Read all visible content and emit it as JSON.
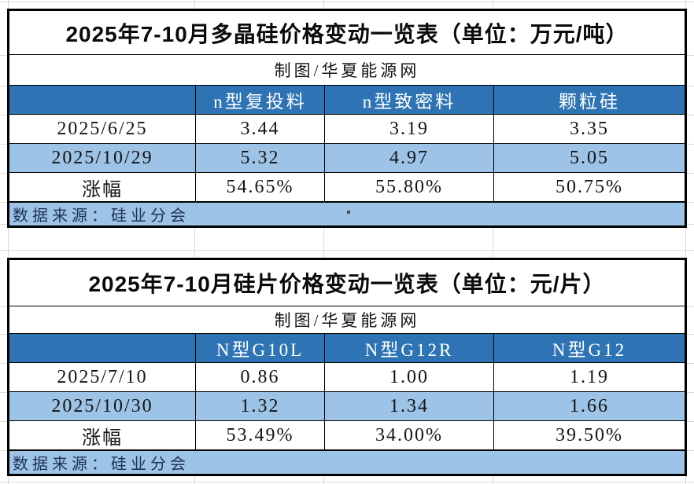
{
  "colors": {
    "header_bg": "#2E74B5",
    "band_bg": "#9DC3E6",
    "border": "#000000",
    "source_text": "#1F3350",
    "gridline": "#D9D9D9"
  },
  "chart_data": [
    {
      "type": "table",
      "title": "2025年7-10月多晶硅价格变动一览表（单位：万元/吨）",
      "credit": "制图/华夏能源网",
      "columns": [
        "n型复投料",
        "n型致密料",
        "颗粒硅"
      ],
      "row_labels": [
        "2025/6/25",
        "2025/10/29",
        "涨幅"
      ],
      "rows": [
        [
          "3.44",
          "3.19",
          "3.35"
        ],
        [
          "5.32",
          "4.97",
          "5.05"
        ],
        [
          "54.65%",
          "55.80%",
          "50.75%"
        ]
      ],
      "source": "数据来源：硅业分会",
      "stray_mark": "."
    },
    {
      "type": "table",
      "title": "2025年7-10月硅片价格变动一览表（单位：元/片）",
      "credit": "制图/华夏能源网",
      "columns": [
        "N型G10L",
        "N型G12R",
        "N型G12"
      ],
      "row_labels": [
        "2025/7/10",
        "2025/10/30",
        "涨幅"
      ],
      "rows": [
        [
          "0.86",
          "1.00",
          "1.19"
        ],
        [
          "1.32",
          "1.34",
          "1.66"
        ],
        [
          "53.49%",
          "34.00%",
          "39.50%"
        ]
      ],
      "source": "数据来源：硅业分会"
    }
  ]
}
